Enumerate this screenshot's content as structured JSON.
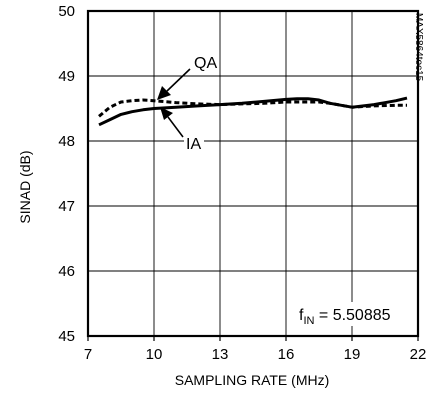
{
  "chart_data": {
    "type": "line",
    "xlabel": "SAMPLING RATE (MHz)",
    "ylabel": "SINAD (dB)",
    "xlim": [
      7,
      22
    ],
    "ylim": [
      45,
      50
    ],
    "xticks": [
      7,
      10,
      13,
      16,
      19,
      22
    ],
    "yticks": [
      45,
      46,
      47,
      48,
      49,
      50
    ],
    "grid": true,
    "series": [
      {
        "name": "QA",
        "style": "dashed",
        "x": [
          7.5,
          8.0,
          8.5,
          9.0,
          9.5,
          10.0,
          11.0,
          12.0,
          13.0,
          14.0,
          15.0,
          16.0,
          17.0,
          17.5,
          18.0,
          19.0,
          20.0,
          21.0,
          21.5
        ],
        "y": [
          48.38,
          48.52,
          48.6,
          48.62,
          48.63,
          48.62,
          48.59,
          48.57,
          48.56,
          48.57,
          48.58,
          48.6,
          48.6,
          48.6,
          48.58,
          48.52,
          48.54,
          48.55,
          48.55
        ]
      },
      {
        "name": "IA",
        "style": "solid",
        "x": [
          7.5,
          8.0,
          8.5,
          9.0,
          9.5,
          10.0,
          11.0,
          12.0,
          13.0,
          14.0,
          15.0,
          16.0,
          16.5,
          17.0,
          17.5,
          18.0,
          19.0,
          20.0,
          21.0,
          21.5
        ],
        "y": [
          48.25,
          48.33,
          48.41,
          48.45,
          48.48,
          48.5,
          48.52,
          48.54,
          48.56,
          48.58,
          48.61,
          48.64,
          48.65,
          48.65,
          48.63,
          48.58,
          48.52,
          48.56,
          48.62,
          48.66
        ]
      }
    ],
    "annotations": {
      "qa_label": "QA",
      "ia_label": "IA",
      "fin_prefix": "f",
      "fin_sub": "IN",
      "fin_value": " = 5.50885"
    },
    "figure_code": "MAX5864toc15"
  }
}
